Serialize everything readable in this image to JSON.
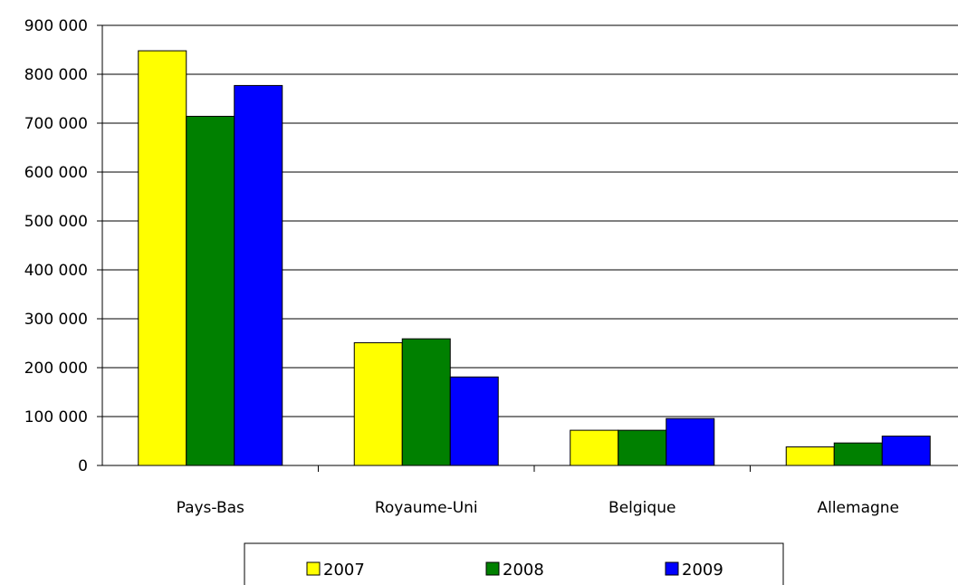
{
  "chart_data": {
    "type": "bar",
    "categories": [
      "Pays-Bas",
      "Royaume-Uni",
      "Belgique",
      "Allemagne"
    ],
    "series": [
      {
        "name": "2007",
        "color": "#FFFF00",
        "values": [
          848000,
          251000,
          72000,
          38000
        ]
      },
      {
        "name": "2008",
        "color": "#008000",
        "values": [
          714000,
          259000,
          72000,
          46000
        ]
      },
      {
        "name": "2009",
        "color": "#0000FF",
        "values": [
          777000,
          181000,
          96000,
          60000
        ]
      }
    ],
    "yticks": [
      "0",
      "100 000",
      "200 000",
      "300 000",
      "400 000",
      "500 000",
      "600 000",
      "700 000",
      "800 000",
      "900 000"
    ],
    "ylim": [
      0,
      900000
    ],
    "grid": true,
    "legend_position": "bottom"
  }
}
